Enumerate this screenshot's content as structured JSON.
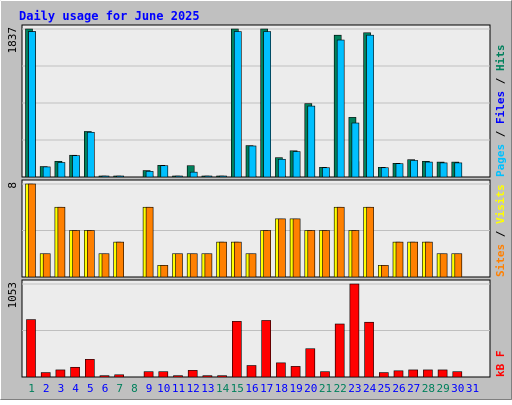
{
  "chart_data": {
    "type": "bar",
    "title": "Daily usage for June 2025",
    "days": [
      "1",
      "2",
      "3",
      "4",
      "5",
      "6",
      "7",
      "8",
      "9",
      "10",
      "11",
      "12",
      "13",
      "14",
      "15",
      "16",
      "17",
      "18",
      "19",
      "20",
      "21",
      "22",
      "23",
      "24",
      "25",
      "26",
      "27",
      "28",
      "29",
      "30",
      "31"
    ],
    "weekend_days": [
      "1",
      "7",
      "8",
      "14",
      "15",
      "21",
      "22",
      "28",
      "29"
    ],
    "colors": {
      "background": "#c0c0c0",
      "frame_bg": "#ececec",
      "title": "#0000ff",
      "hits": "#00805c",
      "files": "#0000ff",
      "pages": "#00c0ff",
      "visits": "#ff8000",
      "sites": "#ffff00",
      "kbf": "#ff0000",
      "weekend_label": "#00805c",
      "weekday_label": "#0000ff"
    },
    "panels": [
      {
        "max_label": "1837",
        "ylim": [
          0,
          1837
        ],
        "legend": [
          {
            "text": "Pages",
            "color": "#00c0ff"
          },
          {
            "text": "Files",
            "color": "#0000ff"
          },
          {
            "text": "Hits",
            "color": "#00805c"
          }
        ],
        "series": [
          {
            "name": "Hits",
            "values": [
              1837,
              130,
              195,
              270,
              565,
              5,
              5,
              0,
              80,
              145,
              5,
              140,
              5,
              5,
              1837,
              390,
              1837,
              240,
              325,
              910,
              120,
              1760,
              740,
              1790,
              120,
              170,
              215,
              195,
              185,
              185,
              0
            ]
          },
          {
            "name": "Files",
            "values": [
              1805,
              5,
              5,
              5,
              5,
              0,
              0,
              0,
              20,
              5,
              0,
              5,
              0,
              0,
              5,
              5,
              5,
              5,
              5,
              5,
              5,
              5,
              190,
              5,
              5,
              5,
              5,
              5,
              5,
              5,
              0
            ]
          },
          {
            "name": "Pages",
            "values": [
              1805,
              125,
              180,
              265,
              555,
              5,
              5,
              0,
              70,
              140,
              5,
              60,
              5,
              5,
              1805,
              385,
              1805,
              220,
              315,
              880,
              115,
              1700,
              670,
              1760,
              115,
              165,
              205,
              185,
              175,
              175,
              0
            ]
          }
        ]
      },
      {
        "max_label": "8",
        "ylim": [
          0,
          8
        ],
        "legend": [
          {
            "text": "Sites",
            "color": "#ff8000"
          },
          {
            "text": "Visits",
            "color": "#ffff00"
          }
        ],
        "series": [
          {
            "name": "Visits",
            "values": [
              8,
              2,
              6,
              4,
              4,
              2,
              3,
              0,
              6,
              1,
              2,
              2,
              2,
              3,
              3,
              2,
              4,
              5,
              5,
              4,
              4,
              6,
              4,
              6,
              1,
              3,
              3,
              3,
              2,
              2,
              0
            ]
          },
          {
            "name": "Sites",
            "values": [
              8,
              2,
              6,
              4,
              4,
              2,
              3,
              0,
              6,
              1,
              2,
              2,
              2,
              3,
              3,
              2,
              4,
              5,
              5,
              4,
              4,
              6,
              4,
              6,
              1,
              3,
              3,
              3,
              2,
              2,
              0
            ]
          }
        ]
      },
      {
        "max_label": "1053",
        "ylim": [
          0,
          1053
        ],
        "legend": [
          {
            "text": "kB F",
            "color": "#ff0000"
          }
        ],
        "series": [
          {
            "name": "kB F",
            "values": [
              650,
              50,
              80,
              110,
              200,
              15,
              25,
              0,
              60,
              60,
              15,
              75,
              15,
              15,
              630,
              130,
              640,
              160,
              120,
              320,
              60,
              600,
              1053,
              620,
              50,
              70,
              80,
              80,
              80,
              60,
              0
            ]
          }
        ]
      }
    ]
  }
}
